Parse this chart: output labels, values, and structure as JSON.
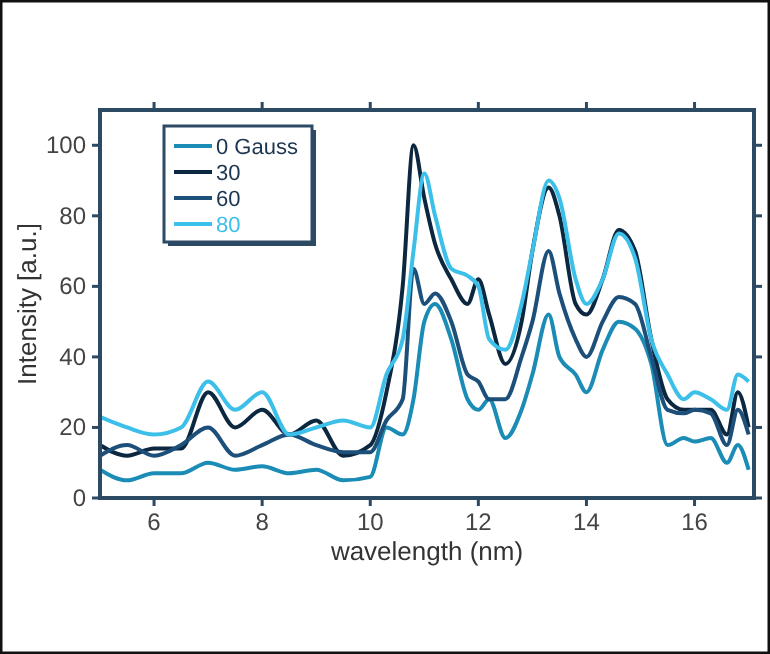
{
  "chart_data": {
    "type": "line",
    "xlabel": "wavelength (nm)",
    "ylabel": "Intensity [a.u.]",
    "x": [
      5,
      5.5,
      6,
      6.5,
      7,
      7.5,
      8,
      8.5,
      9,
      9.5,
      10,
      10.3,
      10.6,
      10.8,
      11,
      11.2,
      11.5,
      11.8,
      12,
      12.2,
      12.5,
      12.8,
      13,
      13.3,
      13.5,
      13.8,
      14,
      14.3,
      14.6,
      14.9,
      15.2,
      15.5,
      15.8,
      16,
      16.3,
      16.6,
      16.8,
      17
    ],
    "series": [
      {
        "name": "0 Gauss",
        "color": "#1a8cb5",
        "values": [
          8,
          5,
          7,
          7,
          10,
          8,
          9,
          7,
          8,
          5,
          6,
          20,
          18,
          28,
          50,
          55,
          45,
          28,
          25,
          28,
          17,
          25,
          35,
          52,
          40,
          35,
          30,
          42,
          50,
          48,
          38,
          15,
          17,
          16,
          17,
          10,
          15,
          8
        ]
      },
      {
        "name": "30",
        "color": "#0c2840",
        "values": [
          15,
          12,
          14,
          14,
          30,
          20,
          25,
          18,
          22,
          12,
          15,
          30,
          60,
          100,
          85,
          72,
          62,
          55,
          62,
          52,
          38,
          50,
          70,
          88,
          80,
          55,
          52,
          62,
          76,
          70,
          45,
          28,
          25,
          25,
          25,
          18,
          30,
          20
        ]
      },
      {
        "name": "60",
        "color": "#1c4f7a",
        "values": [
          12,
          15,
          12,
          15,
          20,
          12,
          15,
          18,
          15,
          13,
          13,
          22,
          28,
          65,
          55,
          58,
          50,
          35,
          33,
          28,
          28,
          40,
          50,
          70,
          58,
          45,
          40,
          50,
          57,
          55,
          40,
          25,
          24,
          25,
          24,
          15,
          25,
          18
        ]
      },
      {
        "name": "80",
        "color": "#3cbfe8",
        "values": [
          23,
          20,
          18,
          20,
          33,
          25,
          30,
          18,
          20,
          22,
          20,
          35,
          45,
          70,
          92,
          80,
          65,
          63,
          60,
          45,
          42,
          55,
          70,
          90,
          85,
          62,
          55,
          62,
          75,
          68,
          45,
          35,
          28,
          30,
          28,
          25,
          35,
          33
        ]
      }
    ],
    "xlim": [
      5,
      17.1
    ],
    "ylim": [
      0,
      110
    ],
    "xticks": [
      6,
      8,
      10,
      12,
      14,
      16
    ],
    "yticks": [
      0,
      20,
      40,
      60,
      80,
      100
    ],
    "grid": false,
    "legend": "top left",
    "marker": "none",
    "line_style": "solid"
  }
}
